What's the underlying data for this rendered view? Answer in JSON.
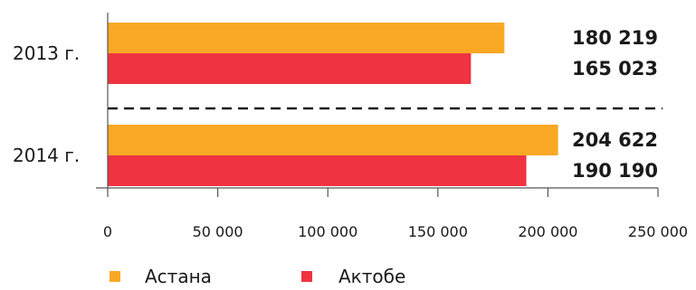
{
  "chart_data": {
    "type": "bar",
    "orientation": "horizontal",
    "categories": [
      "2013 г.",
      "2014 г."
    ],
    "series": [
      {
        "name": "Астана",
        "values": [
          180219,
          204622
        ],
        "value_labels": [
          "180 219",
          "204 622"
        ],
        "color": "#F9A825"
      },
      {
        "name": "Актобе",
        "values": [
          165023,
          190190
        ],
        "value_labels": [
          "165 023",
          "190 190"
        ],
        "color": "#EF3340"
      }
    ],
    "xlim": [
      0,
      250000
    ],
    "xticks": [
      0,
      50000,
      100000,
      150000,
      200000,
      250000
    ],
    "xtick_labels": [
      "0",
      "50 000",
      "100 000",
      "150 000",
      "200 000",
      "250 000"
    ],
    "title": "",
    "xlabel": "",
    "ylabel": "",
    "grid": false,
    "legend": "bottom-left",
    "separator": "dashed line between categories"
  }
}
